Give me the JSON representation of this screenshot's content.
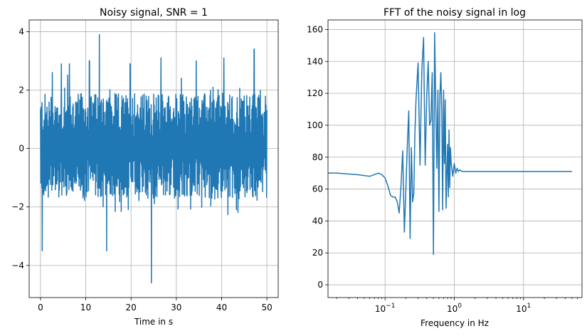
{
  "chart_data": [
    {
      "type": "line",
      "title": "Noisy signal, SNR = 1",
      "xlabel": "Time in s",
      "ylabel": "",
      "xlim": [
        -2.5,
        52.5
      ],
      "ylim": [
        -5.1,
        4.4
      ],
      "xticks": [
        0,
        10,
        20,
        30,
        40,
        50
      ],
      "xtick_labels": [
        "0",
        "10",
        "20",
        "30",
        "40",
        "50"
      ],
      "yticks": [
        -4,
        -2,
        0,
        2,
        4
      ],
      "ytick_labels": [
        "−4",
        "−2",
        "0",
        "2",
        "4"
      ],
      "grid": true,
      "color": "#1f77b4",
      "signal": {
        "x_start": 0,
        "x_end": 50,
        "samples": 900,
        "band_low": -1.7,
        "band_high": 1.9,
        "spikes": [
          {
            "x": 0.4,
            "y": -3.5
          },
          {
            "x": 2.6,
            "y": 2.6
          },
          {
            "x": 4.6,
            "y": 2.9
          },
          {
            "x": 6.4,
            "y": 2.9
          },
          {
            "x": 10.8,
            "y": 3.0
          },
          {
            "x": 13.0,
            "y": 3.9
          },
          {
            "x": 14.6,
            "y": -3.5
          },
          {
            "x": 19.8,
            "y": 2.9
          },
          {
            "x": 24.5,
            "y": -4.6
          },
          {
            "x": 26.6,
            "y": 3.1
          },
          {
            "x": 34.4,
            "y": 3.0
          },
          {
            "x": 40.5,
            "y": 3.1
          },
          {
            "x": 47.2,
            "y": 3.4
          }
        ]
      }
    },
    {
      "type": "line",
      "title": "FFT of the noisy signal in log",
      "xlabel": "Frequency in Hz",
      "ylabel": "",
      "xscale": "log",
      "xlim": [
        0.015,
        70
      ],
      "ylim": [
        -8,
        166
      ],
      "xticks": [
        0.1,
        1,
        10
      ],
      "xtick_labels": [
        "10−1",
        "100",
        "101"
      ],
      "yticks": [
        0,
        20,
        40,
        60,
        80,
        100,
        120,
        140,
        160
      ],
      "ytick_labels": [
        "0",
        "20",
        "40",
        "60",
        "80",
        "100",
        "120",
        "140",
        "160"
      ],
      "grid": true,
      "color": "#1f77b4",
      "x": [
        0.015,
        0.02,
        0.04,
        0.06,
        0.08,
        0.09,
        0.1,
        0.11,
        0.12,
        0.13,
        0.14,
        0.15,
        0.16,
        0.17,
        0.18,
        0.19,
        0.2,
        0.21,
        0.22,
        0.23,
        0.24,
        0.25,
        0.26,
        0.27,
        0.28,
        0.3,
        0.32,
        0.34,
        0.36,
        0.38,
        0.4,
        0.42,
        0.44,
        0.46,
        0.48,
        0.5,
        0.52,
        0.54,
        0.56,
        0.58,
        0.6,
        0.62,
        0.64,
        0.66,
        0.68,
        0.7,
        0.72,
        0.74,
        0.76,
        0.78,
        0.8,
        0.82,
        0.84,
        0.86,
        0.88,
        0.9,
        0.95,
        1.0,
        1.05,
        1.1,
        1.15,
        1.2,
        1.3,
        1.5,
        2,
        5,
        10,
        50
      ],
      "y": [
        70,
        70,
        69,
        68,
        70,
        69,
        67,
        62,
        56,
        55,
        55,
        52,
        45,
        62,
        84,
        33,
        60,
        88,
        109,
        29,
        86,
        52,
        57,
        95,
        116,
        139,
        75,
        135,
        155,
        75,
        118,
        140,
        100,
        103,
        133,
        19,
        158,
        113,
        73,
        122,
        46,
        119,
        133,
        108,
        47,
        122,
        76,
        116,
        48,
        69,
        88,
        55,
        97,
        61,
        86,
        77,
        68,
        76,
        70,
        73,
        71,
        72,
        71,
        71,
        71,
        71,
        71,
        71
      ]
    }
  ]
}
